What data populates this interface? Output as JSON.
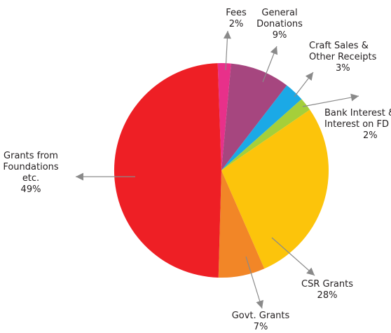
{
  "chart_data": {
    "type": "pie",
    "title": "",
    "slices": [
      {
        "label_lines": [
          "Fees",
          "2%"
        ],
        "value": 2,
        "color": "#e8308a"
      },
      {
        "label_lines": [
          "General",
          "Donations",
          "9%"
        ],
        "value": 9,
        "color": "#a6467f"
      },
      {
        "label_lines": [
          "Craft Sales &",
          "Other Receipts",
          "3%"
        ],
        "value": 3,
        "color": "#1ba9e6"
      },
      {
        "label_lines": [
          "Bank Interest &",
          "Interest on FD",
          "2%"
        ],
        "value": 2,
        "color": "#a5cf3a"
      },
      {
        "label_lines": [
          "CSR Grants",
          "28%"
        ],
        "value": 28,
        "color": "#fcc40b"
      },
      {
        "label_lines": [
          "Govt. Grants",
          "7%"
        ],
        "value": 7,
        "color": "#f28627"
      },
      {
        "label_lines": [
          "Grants from",
          "Foundations",
          "etc.",
          "49%"
        ],
        "value": 49,
        "color": "#ee1f25"
      }
    ]
  }
}
